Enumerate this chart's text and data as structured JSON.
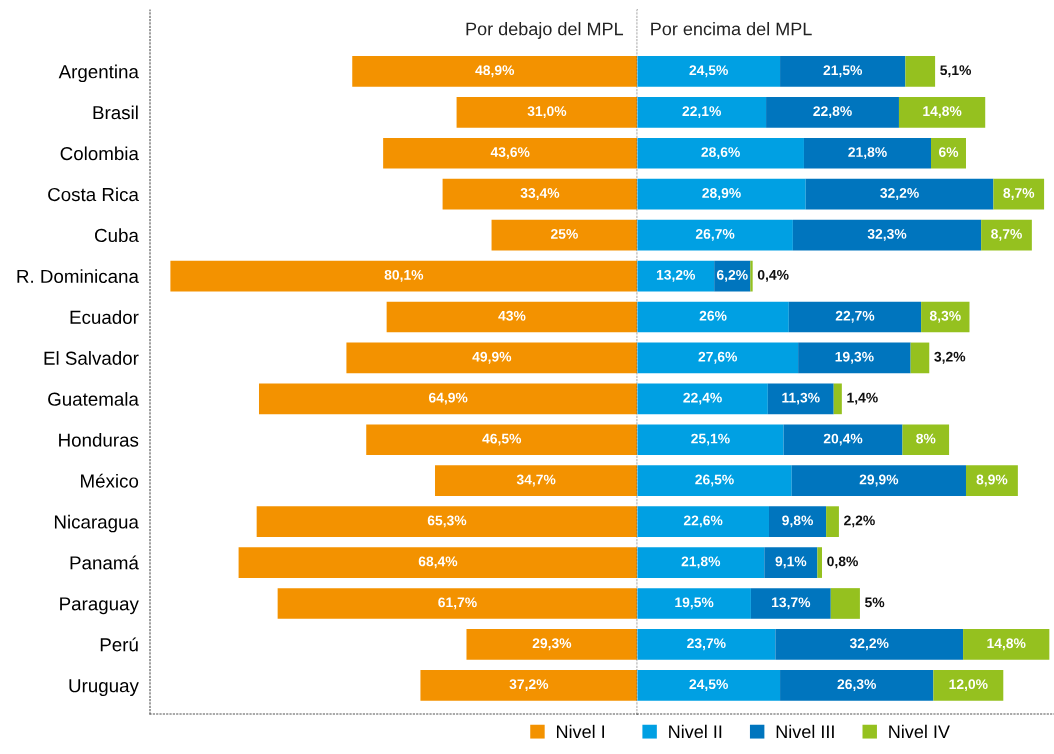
{
  "chart_data": [
    {
      "type": "bar",
      "orientation": "horizontal",
      "title": "Por debajo del MPL",
      "legend": "bottom",
      "grid": false,
      "xlim": [
        83.6,
        0
      ],
      "categories": [
        "Argentina",
        "Brasil",
        "Colombia",
        "Costa Rica",
        "Cuba",
        "R. Dominicana",
        "Ecuador",
        "El Salvador",
        "Guatemala",
        "Honduras",
        "México",
        "Nicaragua",
        "Panamá",
        "Paraguay",
        "Perú",
        "Uruguay"
      ],
      "series": [
        {
          "name": "Nivel I",
          "color": "#f39200",
          "values": [
            48.9,
            31.0,
            43.6,
            33.4,
            25,
            80.1,
            43,
            49.9,
            64.9,
            46.5,
            34.7,
            65.3,
            68.4,
            61.7,
            29.3,
            37.2
          ],
          "value_labels": [
            "48,9%",
            "31,0%",
            "43,6%",
            "33,4%",
            "25%",
            "80,1%",
            "43%",
            "49,9%",
            "64,9%",
            "46,5%",
            "34,7%",
            "65,3%",
            "68,4%",
            "61,7%",
            "29,3%",
            "37,2%"
          ]
        }
      ]
    },
    {
      "type": "bar",
      "orientation": "horizontal",
      "stacked": true,
      "title": "Por encima del MPL",
      "legend": "bottom",
      "grid": false,
      "xlim": [
        0,
        71.5
      ],
      "categories": [
        null,
        null,
        null,
        null,
        null,
        null,
        null,
        null,
        null,
        null,
        null,
        null,
        null,
        null,
        null,
        null
      ],
      "series": [
        {
          "name": "Nivel II",
          "color": "#00a0e3",
          "values": [
            24.5,
            22.1,
            28.6,
            28.9,
            26.7,
            13.2,
            26,
            27.6,
            22.4,
            25.1,
            26.5,
            22.6,
            21.8,
            19.5,
            23.7,
            24.5
          ],
          "value_labels": [
            "24,5%",
            "22,1%",
            "28,6%",
            "28,9%",
            "26,7%",
            "13,2%",
            "26%",
            "27,6%",
            "22,4%",
            "25,1%",
            "26,5%",
            "22,6%",
            "21,8%",
            "19,5%",
            "23,7%",
            "24,5%"
          ]
        },
        {
          "name": "Nivel III",
          "color": "#0075be",
          "values": [
            21.5,
            22.8,
            21.8,
            32.2,
            32.3,
            6.2,
            22.7,
            19.3,
            11.3,
            20.4,
            29.9,
            9.8,
            9.1,
            13.7,
            32.2,
            26.3
          ],
          "value_labels": [
            "21,5%",
            "22,8%",
            "21,8%",
            "32,2%",
            "32,3%",
            "6,2%",
            "22,7%",
            "19,3%",
            "11,3%",
            "20,4%",
            "29,9%",
            "9,8%",
            "9,1%",
            "13,7%",
            "32,2%",
            "26,3%"
          ]
        },
        {
          "name": "Nivel IV",
          "color": "#95c11f",
          "values": [
            5.1,
            14.8,
            6,
            8.7,
            8.7,
            0.4,
            8.3,
            3.2,
            1.4,
            8,
            8.9,
            2.2,
            0.8,
            5,
            14.8,
            12.0
          ],
          "value_labels": [
            "5,1%",
            "14,8%",
            "6%",
            "8,7%",
            "8,7%",
            "0,4%",
            "8,3%",
            "3,2%",
            "1,4%",
            "8%",
            "8,9%",
            "2,2%",
            "0,8%",
            "5%",
            "14,8%",
            "12,0%"
          ]
        }
      ]
    }
  ]
}
